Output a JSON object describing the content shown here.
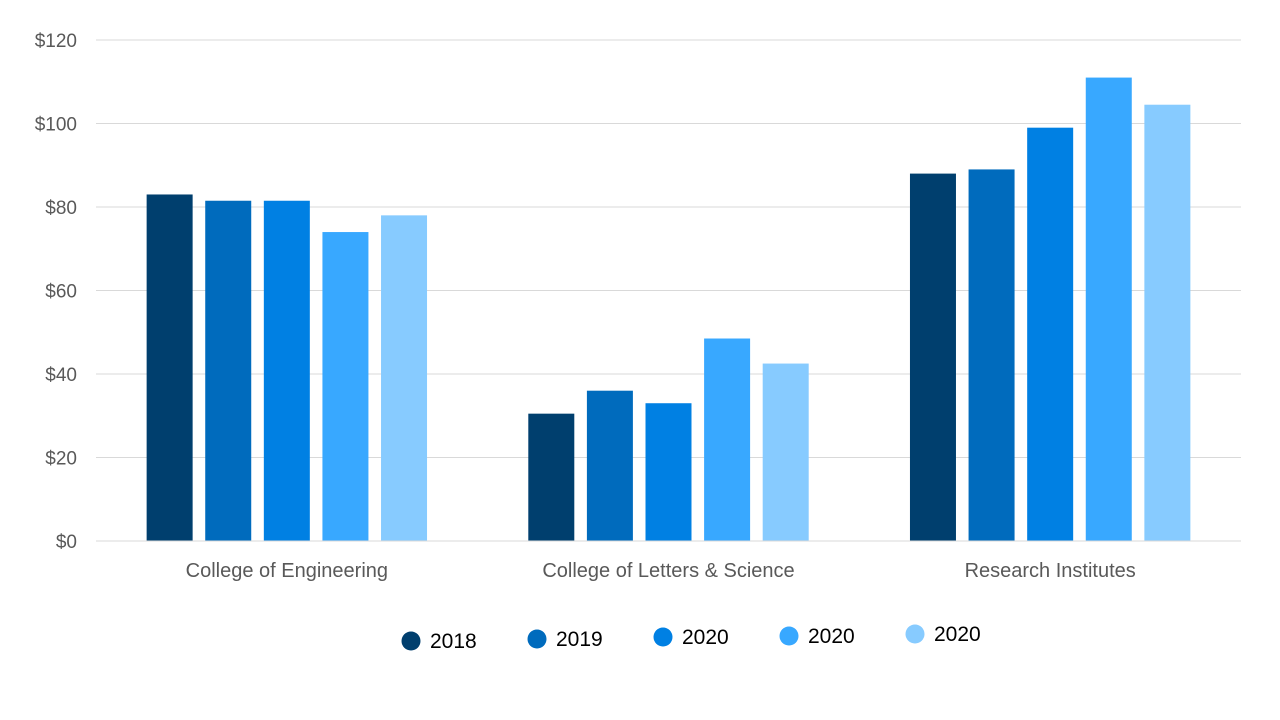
{
  "chart_data": {
    "type": "bar",
    "title": "",
    "xlabel": "",
    "ylabel": "",
    "categories": [
      "College of Engineering",
      "College of Letters & Science",
      "Research Institutes"
    ],
    "series": [
      {
        "name": "2018",
        "color": "#003f6e",
        "values": [
          83,
          30.5,
          88
        ]
      },
      {
        "name": "2019",
        "color": "#006bbd",
        "values": [
          81.5,
          36,
          89
        ]
      },
      {
        "name": "2020",
        "color": "#0080e3",
        "values": [
          81.5,
          33,
          99
        ]
      },
      {
        "name": "2020",
        "color": "#38a8ff",
        "values": [
          74,
          48.5,
          111
        ]
      },
      {
        "name": "2020",
        "color": "#87cbff",
        "values": [
          78,
          42.5,
          104.5
        ]
      }
    ],
    "ylim": [
      0,
      120
    ],
    "yticks": [
      0,
      20,
      40,
      60,
      80,
      100,
      120
    ],
    "ytick_labels": [
      "$0",
      "$20",
      "$40",
      "$60",
      "$80",
      "$100",
      "$120"
    ],
    "grid": true,
    "legend_position": "bottom"
  }
}
